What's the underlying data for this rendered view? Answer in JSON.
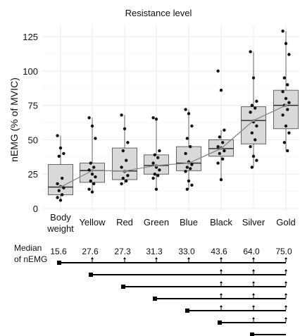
{
  "chart_data": {
    "type": "box",
    "title": "Resistance level",
    "xlabel": "",
    "ylabel": "nEMG (% of MVIC)",
    "ylim": [
      0,
      135
    ],
    "yticks": [
      0,
      25,
      50,
      75,
      100,
      125
    ],
    "grid": true,
    "categories": [
      [
        "Body",
        "weight"
      ],
      [
        "Yellow"
      ],
      [
        "Red"
      ],
      [
        "Green"
      ],
      [
        "Blue"
      ],
      [
        "Black"
      ],
      [
        "Silver"
      ],
      [
        "Gold"
      ]
    ],
    "boxes": [
      {
        "q1": 10,
        "median": 15.6,
        "q3": 32,
        "whisker_low": 6,
        "whisker_high": 53
      },
      {
        "q1": 19,
        "median": 27.6,
        "q3": 33,
        "whisker_low": 12,
        "whisker_high": 66
      },
      {
        "q1": 21,
        "median": 27.3,
        "q3": 44,
        "whisker_low": 18,
        "whisker_high": 68
      },
      {
        "q1": 25,
        "median": 31.3,
        "q3": 39,
        "whisker_low": 14,
        "whisker_high": 66
      },
      {
        "q1": 27.5,
        "median": 33.0,
        "q3": 45,
        "whisker_low": 14,
        "whisker_high": 72
      },
      {
        "q1": 38,
        "median": 43.6,
        "q3": 50,
        "whisker_low": 21,
        "whisker_high": 57
      },
      {
        "q1": 47,
        "median": 64.0,
        "q3": 74,
        "whisker_low": 30,
        "whisker_high": 114
      },
      {
        "q1": 58,
        "median": 75.0,
        "q3": 86,
        "whisker_low": 42,
        "whisker_high": 129
      }
    ],
    "points": [
      [
        53,
        44,
        40,
        38,
        22,
        18,
        16,
        15,
        13,
        10,
        8,
        6
      ],
      [
        66,
        60,
        51,
        33,
        30,
        28,
        25,
        23,
        20,
        18,
        14,
        12
      ],
      [
        68,
        58,
        48,
        42,
        35,
        30,
        27,
        24,
        22,
        20,
        18
      ],
      [
        66,
        65,
        42,
        39,
        37,
        33,
        30,
        28,
        25,
        24,
        22,
        14
      ],
      [
        72,
        69,
        60,
        51,
        45,
        40,
        34,
        32,
        30,
        29,
        27,
        20,
        17,
        14
      ],
      [
        100,
        86,
        57,
        52,
        48,
        45,
        44,
        42,
        40,
        36,
        33,
        21
      ],
      [
        114,
        95,
        78,
        75,
        73,
        70,
        63,
        60,
        55,
        50,
        45,
        38,
        35,
        30
      ],
      [
        129,
        120,
        112,
        95,
        90,
        85,
        80,
        77,
        75,
        72,
        68,
        60,
        55,
        48,
        42
      ]
    ],
    "median_line": [
      15.6,
      27.6,
      27.3,
      31.3,
      33.0,
      43.6,
      64.0,
      75.0
    ],
    "comparison_table": {
      "label": [
        "Median",
        "of nEMG"
      ],
      "medians": [
        "15.6",
        "27.6",
        "27.3",
        "31.3",
        "33.0",
        "43.6",
        "64.0",
        "75.0"
      ],
      "rows": [
        {
          "from": 0,
          "marks": [
            1,
            2,
            3,
            4,
            5,
            6,
            7
          ]
        },
        {
          "from": 1,
          "marks": [
            5,
            6,
            7
          ]
        },
        {
          "from": 2,
          "marks": [
            5,
            6,
            7
          ]
        },
        {
          "from": 3,
          "marks": [
            5,
            6,
            7
          ]
        },
        {
          "from": 4,
          "marks": [
            5,
            6,
            7
          ]
        },
        {
          "from": 5,
          "marks": [
            6,
            7
          ]
        },
        {
          "from": 6,
          "marks": []
        }
      ]
    },
    "colors": {
      "box_fill": "#d9d9d9",
      "box_stroke": "#444444",
      "point": "#111111",
      "median_line": "#888888",
      "grid": "#ebebeb"
    }
  }
}
